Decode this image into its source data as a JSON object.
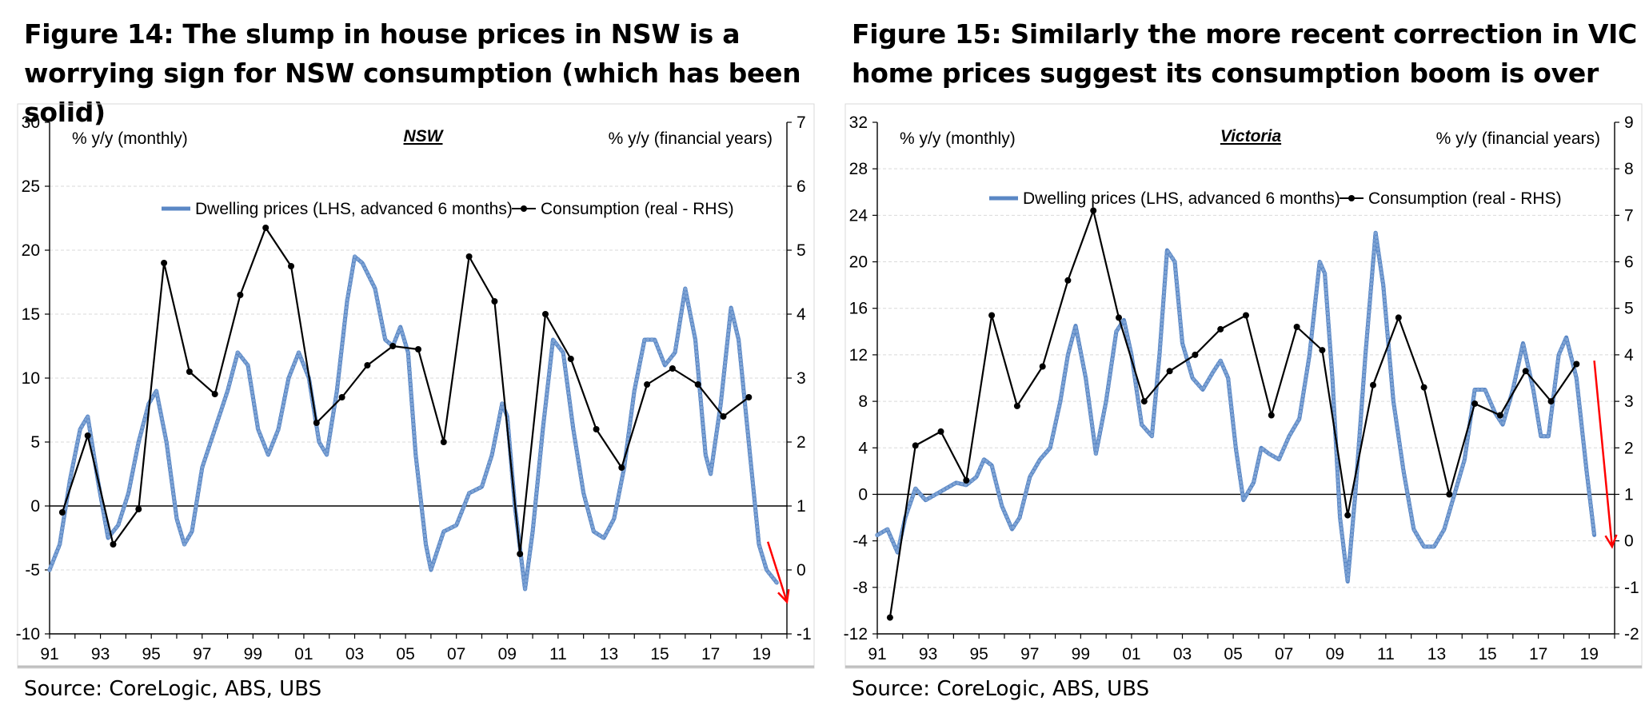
{
  "chart_data": [
    {
      "type": "line",
      "title": "Figure 14: The slump in house prices in NSW is a worrying sign for NSW consumption (which has been solid)",
      "panel_label": "NSW",
      "left_axis_label": "% y/y (monthly)",
      "right_axis_label": "% y/y (financial years)",
      "source": "Source:  CoreLogic, ABS, UBS",
      "x_range": [
        1991,
        2020
      ],
      "x_ticks": [
        "91",
        "93",
        "95",
        "97",
        "99",
        "01",
        "03",
        "05",
        "07",
        "09",
        "11",
        "13",
        "15",
        "17",
        "19"
      ],
      "y_left": {
        "min": -10,
        "max": 30,
        "step": 5,
        "ticks": [
          "30",
          "25",
          "20",
          "15",
          "10",
          "5",
          "0",
          "-5",
          "-10"
        ]
      },
      "y_right": {
        "min": -1,
        "max": 7,
        "step": 1,
        "ticks": [
          "7",
          "6",
          "5",
          "4",
          "3",
          "2",
          "1",
          "0",
          "-1"
        ]
      },
      "zero_line_left": 0,
      "series": [
        {
          "name": "Dwelling prices (LHS, advanced 6 months)",
          "axis": "left",
          "color": "#5a87c5",
          "points": [
            [
              1991.0,
              -5
            ],
            [
              1991.4,
              -3
            ],
            [
              1991.8,
              2
            ],
            [
              1992.2,
              6
            ],
            [
              1992.5,
              7
            ],
            [
              1992.9,
              2
            ],
            [
              1993.3,
              -2.5
            ],
            [
              1993.7,
              -1.5
            ],
            [
              1994.1,
              1
            ],
            [
              1994.5,
              5
            ],
            [
              1994.9,
              8
            ],
            [
              1995.2,
              9
            ],
            [
              1995.6,
              5
            ],
            [
              1996.0,
              -1
            ],
            [
              1996.3,
              -3
            ],
            [
              1996.6,
              -2
            ],
            [
              1997.0,
              3
            ],
            [
              1997.5,
              6
            ],
            [
              1998.0,
              9
            ],
            [
              1998.4,
              12
            ],
            [
              1998.8,
              11
            ],
            [
              1999.2,
              6
            ],
            [
              1999.6,
              4
            ],
            [
              2000.0,
              6
            ],
            [
              2000.4,
              10
            ],
            [
              2000.8,
              12
            ],
            [
              2001.2,
              10
            ],
            [
              2001.6,
              5
            ],
            [
              2001.9,
              4
            ],
            [
              2002.3,
              9
            ],
            [
              2002.7,
              16
            ],
            [
              2003.0,
              19.5
            ],
            [
              2003.3,
              19
            ],
            [
              2003.8,
              17
            ],
            [
              2004.2,
              13
            ],
            [
              2004.5,
              12.5
            ],
            [
              2004.8,
              14
            ],
            [
              2005.1,
              12
            ],
            [
              2005.4,
              4
            ],
            [
              2005.8,
              -3
            ],
            [
              2006.0,
              -5
            ],
            [
              2006.5,
              -2
            ],
            [
              2007.0,
              -1.5
            ],
            [
              2007.5,
              1
            ],
            [
              2008.0,
              1.5
            ],
            [
              2008.4,
              4
            ],
            [
              2008.8,
              8
            ],
            [
              2009.0,
              7
            ],
            [
              2009.3,
              0
            ],
            [
              2009.7,
              -6.5
            ],
            [
              2010.0,
              -2
            ],
            [
              2010.4,
              6
            ],
            [
              2010.8,
              13
            ],
            [
              2011.2,
              12
            ],
            [
              2011.6,
              6
            ],
            [
              2012.0,
              1
            ],
            [
              2012.4,
              -2
            ],
            [
              2012.8,
              -2.5
            ],
            [
              2013.2,
              -1
            ],
            [
              2013.6,
              3
            ],
            [
              2014.0,
              9
            ],
            [
              2014.4,
              13
            ],
            [
              2014.8,
              13
            ],
            [
              2015.2,
              11
            ],
            [
              2015.6,
              12
            ],
            [
              2016.0,
              17
            ],
            [
              2016.4,
              13
            ],
            [
              2016.8,
              4
            ],
            [
              2017.0,
              2.5
            ],
            [
              2017.4,
              8
            ],
            [
              2017.8,
              15.5
            ],
            [
              2018.1,
              13
            ],
            [
              2018.5,
              5
            ],
            [
              2018.9,
              -3
            ],
            [
              2019.2,
              -5
            ],
            [
              2019.6,
              -6
            ]
          ]
        },
        {
          "name": "Consumption (real - RHS)",
          "axis": "right",
          "color": "#000000",
          "points": [
            [
              1991.5,
              0.9
            ],
            [
              1992.5,
              2.1
            ],
            [
              1993.5,
              0.4
            ],
            [
              1994.5,
              0.95
            ],
            [
              1995.5,
              4.8
            ],
            [
              1996.5,
              3.1
            ],
            [
              1997.5,
              2.75
            ],
            [
              1998.5,
              4.3
            ],
            [
              1999.5,
              5.35
            ],
            [
              2000.5,
              4.75
            ],
            [
              2001.5,
              2.3
            ],
            [
              2002.5,
              2.7
            ],
            [
              2003.5,
              3.2
            ],
            [
              2004.5,
              3.5
            ],
            [
              2005.5,
              3.45
            ],
            [
              2006.5,
              2.0
            ],
            [
              2007.5,
              4.9
            ],
            [
              2008.5,
              4.2
            ],
            [
              2009.5,
              0.25
            ],
            [
              2010.5,
              4.0
            ],
            [
              2011.5,
              3.3
            ],
            [
              2012.5,
              2.2
            ],
            [
              2013.5,
              1.6
            ],
            [
              2014.5,
              2.9
            ],
            [
              2015.5,
              3.15
            ],
            [
              2016.5,
              2.9
            ],
            [
              2017.5,
              2.4
            ],
            [
              2018.5,
              2.7
            ]
          ]
        }
      ],
      "annotation": {
        "type": "red-arrow",
        "color": "#ff0000",
        "from": [
          2019.25,
          -2.8
        ],
        "to": [
          2020.0,
          -7.5
        ]
      }
    },
    {
      "type": "line",
      "title": "Figure 15: Similarly the more recent correction in VIC home prices suggest its consumption boom is over",
      "panel_label": "Victoria",
      "left_axis_label": "% y/y (monthly)",
      "right_axis_label": "% y/y (financial years)",
      "source": "Source:  CoreLogic, ABS, UBS",
      "x_range": [
        1991,
        2020
      ],
      "x_ticks": [
        "91",
        "93",
        "95",
        "97",
        "99",
        "01",
        "03",
        "05",
        "07",
        "09",
        "11",
        "13",
        "15",
        "17",
        "19"
      ],
      "y_left": {
        "min": -12,
        "max": 32,
        "step": 4,
        "ticks": [
          "32",
          "28",
          "24",
          "20",
          "16",
          "12",
          "8",
          "4",
          "0",
          "-4",
          "-8",
          "-12"
        ]
      },
      "y_right": {
        "min": -2,
        "max": 9,
        "step": 1,
        "ticks": [
          "9",
          "8",
          "7",
          "6",
          "5",
          "4",
          "3",
          "2",
          "1",
          "0",
          "-1",
          "-2"
        ]
      },
      "zero_line_left": 0,
      "series": [
        {
          "name": "Dwelling prices (LHS, advanced 6 months)",
          "axis": "left",
          "color": "#5a87c5",
          "points": [
            [
              1991.0,
              -3.5
            ],
            [
              1991.4,
              -3
            ],
            [
              1991.8,
              -5
            ],
            [
              1992.1,
              -2
            ],
            [
              1992.5,
              0.5
            ],
            [
              1992.9,
              -0.5
            ],
            [
              1993.3,
              0
            ],
            [
              1993.7,
              0.5
            ],
            [
              1994.1,
              1
            ],
            [
              1994.5,
              0.8
            ],
            [
              1994.9,
              1.5
            ],
            [
              1995.2,
              3
            ],
            [
              1995.5,
              2.5
            ],
            [
              1995.9,
              -1
            ],
            [
              1996.3,
              -3
            ],
            [
              1996.6,
              -2
            ],
            [
              1997.0,
              1.5
            ],
            [
              1997.4,
              3
            ],
            [
              1997.8,
              4
            ],
            [
              1998.2,
              8
            ],
            [
              1998.5,
              12
            ],
            [
              1998.8,
              14.5
            ],
            [
              1999.2,
              10
            ],
            [
              1999.6,
              3.5
            ],
            [
              2000.0,
              8
            ],
            [
              2000.4,
              14
            ],
            [
              2000.7,
              15
            ],
            [
              2001.0,
              12
            ],
            [
              2001.4,
              6
            ],
            [
              2001.8,
              5
            ],
            [
              2002.1,
              12
            ],
            [
              2002.4,
              21
            ],
            [
              2002.7,
              20
            ],
            [
              2003.0,
              13
            ],
            [
              2003.4,
              10
            ],
            [
              2003.8,
              9
            ],
            [
              2004.2,
              10.5
            ],
            [
              2004.5,
              11.5
            ],
            [
              2004.8,
              10
            ],
            [
              2005.1,
              4
            ],
            [
              2005.4,
              -0.5
            ],
            [
              2005.8,
              1
            ],
            [
              2006.1,
              4
            ],
            [
              2006.4,
              3.5
            ],
            [
              2006.8,
              3
            ],
            [
              2007.2,
              5
            ],
            [
              2007.6,
              6.5
            ],
            [
              2008.0,
              12
            ],
            [
              2008.4,
              20
            ],
            [
              2008.6,
              19
            ],
            [
              2008.9,
              10
            ],
            [
              2009.2,
              -2
            ],
            [
              2009.5,
              -7.5
            ],
            [
              2009.8,
              0
            ],
            [
              2010.2,
              12
            ],
            [
              2010.6,
              22.5
            ],
            [
              2010.9,
              18
            ],
            [
              2011.3,
              8
            ],
            [
              2011.7,
              2
            ],
            [
              2012.1,
              -3
            ],
            [
              2012.5,
              -4.5
            ],
            [
              2012.9,
              -4.5
            ],
            [
              2013.3,
              -3
            ],
            [
              2013.7,
              0
            ],
            [
              2014.1,
              3
            ],
            [
              2014.5,
              9
            ],
            [
              2014.9,
              9
            ],
            [
              2015.3,
              7
            ],
            [
              2015.6,
              6
            ],
            [
              2016.0,
              9
            ],
            [
              2016.4,
              13
            ],
            [
              2016.8,
              9
            ],
            [
              2017.1,
              5
            ],
            [
              2017.4,
              5
            ],
            [
              2017.8,
              12
            ],
            [
              2018.1,
              13.5
            ],
            [
              2018.5,
              10
            ],
            [
              2018.9,
              2
            ],
            [
              2019.2,
              -3.5
            ]
          ]
        },
        {
          "name": "Consumption (real - RHS)",
          "axis": "right",
          "color": "#000000",
          "points": [
            [
              1991.5,
              -1.65
            ],
            [
              1992.5,
              2.05
            ],
            [
              1993.5,
              2.35
            ],
            [
              1994.5,
              1.3
            ],
            [
              1995.5,
              4.85
            ],
            [
              1996.5,
              2.9
            ],
            [
              1997.5,
              3.75
            ],
            [
              1998.5,
              5.6
            ],
            [
              1999.5,
              7.1
            ],
            [
              2000.5,
              4.8
            ],
            [
              2001.5,
              3.0
            ],
            [
              2002.5,
              3.65
            ],
            [
              2003.5,
              4.0
            ],
            [
              2004.5,
              4.55
            ],
            [
              2005.5,
              4.85
            ],
            [
              2006.5,
              2.7
            ],
            [
              2007.5,
              4.6
            ],
            [
              2008.5,
              4.1
            ],
            [
              2009.5,
              0.55
            ],
            [
              2010.5,
              3.35
            ],
            [
              2011.5,
              4.8
            ],
            [
              2012.5,
              3.3
            ],
            [
              2013.5,
              1.0
            ],
            [
              2014.5,
              2.95
            ],
            [
              2015.5,
              2.7
            ],
            [
              2016.5,
              3.65
            ],
            [
              2017.5,
              3.0
            ],
            [
              2018.5,
              3.8
            ]
          ]
        }
      ],
      "annotation": {
        "type": "red-arrow",
        "color": "#ff0000",
        "from": [
          2019.2,
          11.5
        ],
        "to": [
          2019.9,
          -4.5
        ]
      }
    }
  ]
}
